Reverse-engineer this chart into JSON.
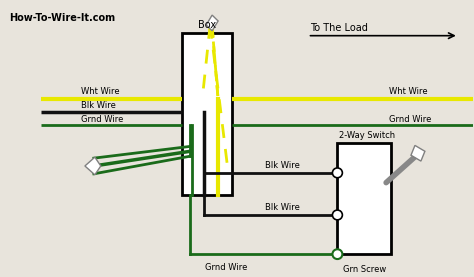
{
  "bg": "#e8e4dc",
  "wire_yellow": "#e8e800",
  "wire_black": "#111111",
  "wire_green": "#1a6b1a",
  "wire_green2": "#2d8b2d",
  "title": "How-To-Wire-It.com",
  "to_load": "To The Load",
  "label_wht_left": "Wht Wire",
  "label_blk_left": "Blk Wire",
  "label_grnd_left": "Grnd Wire",
  "label_wht_right": "Wht Wire",
  "label_grnd_right": "Grnd Wire",
  "label_box": "Box",
  "label_switch": "2-Way Switch",
  "label_blk_top": "Blk Wire",
  "label_blk_bot": "Blk Wire",
  "label_grnd_bottom": "Grnd Wire",
  "label_grn_screw": "Grn Screw",
  "panel_bg": "#f5f5f0"
}
